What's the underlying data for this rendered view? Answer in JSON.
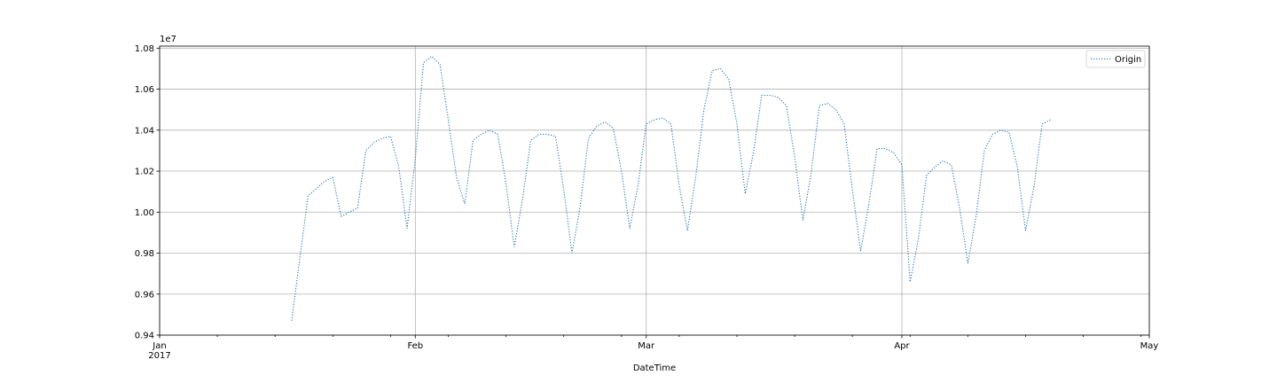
{
  "chart_data": {
    "type": "line",
    "title": "",
    "xlabel": "DateTime",
    "ylabel": "",
    "y_offset_label": "1e7",
    "ylim": [
      0.94,
      1.081
    ],
    "xlim": [
      "2017-01-01",
      "2017-05-01"
    ],
    "y_ticks": [
      0.94,
      0.96,
      0.98,
      1.0,
      1.02,
      1.04,
      1.06,
      1.08
    ],
    "x_major_ticks": [
      {
        "date": "2017-01-01",
        "label": "Jan",
        "sublabel": "2017"
      },
      {
        "date": "2017-02-01",
        "label": "Feb",
        "sublabel": ""
      },
      {
        "date": "2017-03-01",
        "label": "Mar",
        "sublabel": ""
      },
      {
        "date": "2017-04-01",
        "label": "Apr",
        "sublabel": ""
      },
      {
        "date": "2017-05-01",
        "label": "May",
        "sublabel": ""
      }
    ],
    "grid": true,
    "legend_position": "top-right",
    "series": [
      {
        "name": "Origin",
        "color": "#1f77b4",
        "linestyle": "dotted",
        "x": [
          "2017-01-17",
          "2017-01-19",
          "2017-01-21",
          "2017-01-22",
          "2017-01-23",
          "2017-01-25",
          "2017-01-26",
          "2017-01-27",
          "2017-01-28",
          "2017-01-29",
          "2017-01-30",
          "2017-01-31",
          "2017-02-01",
          "2017-02-02",
          "2017-02-03",
          "2017-02-04",
          "2017-02-05",
          "2017-02-06",
          "2017-02-07",
          "2017-02-08",
          "2017-02-09",
          "2017-02-10",
          "2017-02-11",
          "2017-02-12",
          "2017-02-13",
          "2017-02-14",
          "2017-02-15",
          "2017-02-16",
          "2017-02-17",
          "2017-02-18",
          "2017-02-19",
          "2017-02-20",
          "2017-02-21",
          "2017-02-22",
          "2017-02-23",
          "2017-02-24",
          "2017-02-25",
          "2017-02-26",
          "2017-02-27",
          "2017-02-28",
          "2017-03-01",
          "2017-03-02",
          "2017-03-03",
          "2017-03-04",
          "2017-03-05",
          "2017-03-06",
          "2017-03-07",
          "2017-03-08",
          "2017-03-09",
          "2017-03-10",
          "2017-03-11",
          "2017-03-12",
          "2017-03-13",
          "2017-03-14",
          "2017-03-15",
          "2017-03-16",
          "2017-03-17",
          "2017-03-18",
          "2017-03-19",
          "2017-03-20",
          "2017-03-21",
          "2017-03-22",
          "2017-03-23",
          "2017-03-24",
          "2017-03-25",
          "2017-03-26",
          "2017-03-27",
          "2017-03-28",
          "2017-03-29",
          "2017-03-30",
          "2017-03-31",
          "2017-04-01",
          "2017-04-02",
          "2017-04-03",
          "2017-04-04",
          "2017-04-05",
          "2017-04-06",
          "2017-04-07",
          "2017-04-08",
          "2017-04-09",
          "2017-04-10",
          "2017-04-11",
          "2017-04-12",
          "2017-04-13",
          "2017-04-14",
          "2017-04-15",
          "2017-04-16",
          "2017-04-17",
          "2017-04-18",
          "2017-04-19"
        ],
        "values": [
          0.947,
          1.008,
          1.015,
          1.017,
          0.998,
          1.002,
          1.03,
          1.034,
          1.036,
          1.037,
          1.022,
          0.992,
          1.026,
          1.073,
          1.076,
          1.072,
          1.045,
          1.017,
          1.004,
          1.035,
          1.038,
          1.04,
          1.038,
          1.014,
          0.983,
          1.006,
          1.035,
          1.038,
          1.038,
          1.037,
          1.011,
          0.98,
          1.003,
          1.036,
          1.042,
          1.044,
          1.041,
          1.02,
          0.992,
          1.013,
          1.043,
          1.045,
          1.046,
          1.043,
          1.013,
          0.991,
          1.017,
          1.05,
          1.069,
          1.07,
          1.065,
          1.043,
          1.009,
          1.029,
          1.057,
          1.057,
          1.056,
          1.052,
          1.027,
          0.996,
          1.019,
          1.052,
          1.053,
          1.05,
          1.043,
          1.011,
          0.981,
          1.004,
          1.031,
          1.031,
          1.029,
          1.023,
          0.966,
          0.987,
          1.018,
          1.022,
          1.025,
          1.023,
          1.002,
          0.975,
          0.998,
          1.03,
          1.038,
          1.04,
          1.039,
          1.022,
          0.991,
          1.012,
          1.043,
          1.045
        ]
      }
    ]
  }
}
